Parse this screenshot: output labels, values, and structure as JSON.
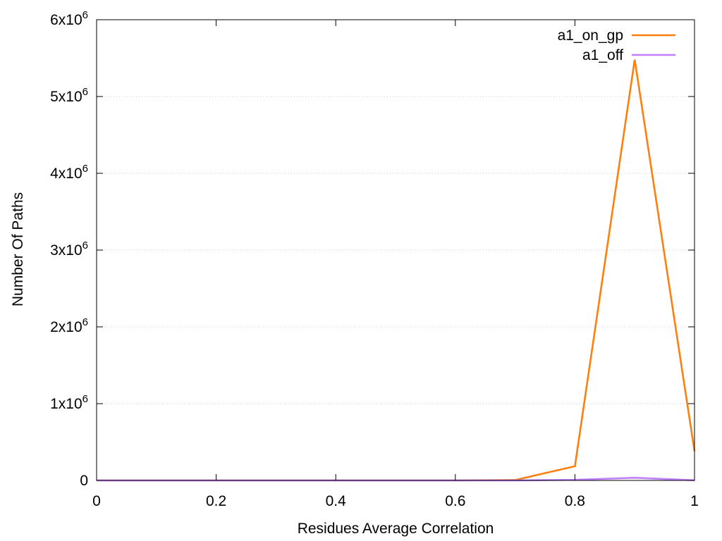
{
  "chart_data": {
    "type": "line",
    "title": "",
    "xlabel": "Residues Average Correlation",
    "ylabel": "Number Of Paths",
    "xlim": [
      0,
      1
    ],
    "ylim": [
      0,
      6000000
    ],
    "grid": true,
    "legend_position": "top-right",
    "x_ticks": [
      0,
      0.2,
      0.4,
      0.6,
      0.8,
      1
    ],
    "x_tick_labels": [
      "0",
      "0.2",
      "0.4",
      "0.6",
      "0.8",
      "1"
    ],
    "y_ticks": [
      0,
      1000000,
      2000000,
      3000000,
      4000000,
      5000000,
      6000000
    ],
    "y_tick_labels": [
      {
        "base": "0",
        "exp": ""
      },
      {
        "base": "1x10",
        "exp": "6"
      },
      {
        "base": "2x10",
        "exp": "6"
      },
      {
        "base": "3x10",
        "exp": "6"
      },
      {
        "base": "4x10",
        "exp": "6"
      },
      {
        "base": "5x10",
        "exp": "6"
      },
      {
        "base": "6x10",
        "exp": "6"
      }
    ],
    "x": [
      0,
      0.1,
      0.2,
      0.3,
      0.4,
      0.5,
      0.6,
      0.7,
      0.8,
      0.9,
      1.0
    ],
    "series": [
      {
        "name": "a1_on_gp",
        "color": "#ff7f0e",
        "values": [
          0,
          0,
          0,
          0,
          0,
          0,
          0,
          5000,
          185000,
          5480000,
          380000
        ]
      },
      {
        "name": "a1_off",
        "color": "#c080ff",
        "values": [
          0,
          0,
          0,
          0,
          0,
          0,
          0,
          0,
          8000,
          35000,
          2000
        ]
      }
    ],
    "axis_line_color": "#000000"
  }
}
